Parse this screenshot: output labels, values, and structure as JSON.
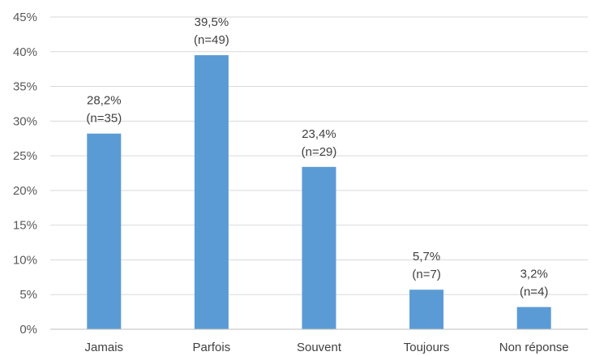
{
  "chart_data": {
    "type": "bar",
    "categories": [
      "Jamais",
      "Parfois",
      "Souvent",
      "Toujours",
      "Non réponse"
    ],
    "values": [
      28.2,
      39.5,
      23.4,
      5.7,
      3.2
    ],
    "value_labels": [
      "28,2%",
      "39,5%",
      "23,4%",
      "5,7%",
      "3,2%"
    ],
    "count_labels": [
      "(n=35)",
      "(n=49)",
      "(n=29)",
      "(n=7)",
      "(n=4)"
    ],
    "yticks": [
      "0%",
      "5%",
      "10%",
      "15%",
      "20%",
      "25%",
      "30%",
      "35%",
      "40%",
      "45%"
    ],
    "ylim": [
      0,
      45
    ],
    "grid": true,
    "bar_color": "#5b9bd5"
  }
}
